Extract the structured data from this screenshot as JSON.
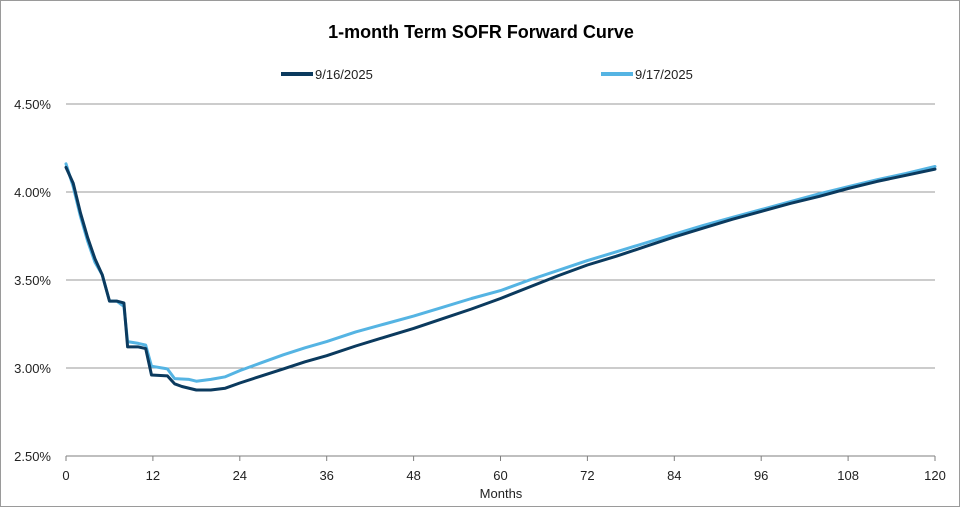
{
  "chart_data": {
    "type": "line",
    "title": "1-month Term SOFR Forward Curve",
    "xlabel": "Months",
    "ylabel": "",
    "xlim": [
      0,
      120
    ],
    "ylim": [
      2.5,
      4.5
    ],
    "x_ticks": [
      0,
      12,
      24,
      36,
      48,
      60,
      72,
      84,
      96,
      108,
      120
    ],
    "x_tick_labels": [
      "0",
      "12",
      "24",
      "36",
      "48",
      "60",
      "72",
      "84",
      "96",
      "108",
      "120"
    ],
    "y_ticks": [
      2.5,
      3.0,
      3.5,
      4.0,
      4.5
    ],
    "y_tick_labels": [
      "2.50%",
      "3.00%",
      "3.50%",
      "4.00%",
      "4.50%"
    ],
    "grid": "horizontal",
    "legend_position": "top",
    "series": [
      {
        "name": "9/16/2025",
        "color": "#0b3a5e",
        "points": [
          [
            0,
            4.14
          ],
          [
            1,
            4.05
          ],
          [
            2,
            3.88
          ],
          [
            3,
            3.74
          ],
          [
            4,
            3.62
          ],
          [
            5,
            3.53
          ],
          [
            6,
            3.38
          ],
          [
            7,
            3.38
          ],
          [
            8,
            3.37
          ],
          [
            8.5,
            3.12
          ],
          [
            10,
            3.12
          ],
          [
            11,
            3.11
          ],
          [
            11.8,
            2.96
          ],
          [
            14,
            2.955
          ],
          [
            15,
            2.91
          ],
          [
            16,
            2.895
          ],
          [
            18,
            2.875
          ],
          [
            20,
            2.875
          ],
          [
            22,
            2.885
          ],
          [
            24,
            2.915
          ],
          [
            27,
            2.955
          ],
          [
            30,
            2.995
          ],
          [
            33,
            3.035
          ],
          [
            36,
            3.07
          ],
          [
            40,
            3.125
          ],
          [
            44,
            3.175
          ],
          [
            48,
            3.225
          ],
          [
            52,
            3.28
          ],
          [
            56,
            3.335
          ],
          [
            60,
            3.395
          ],
          [
            64,
            3.46
          ],
          [
            68,
            3.525
          ],
          [
            72,
            3.585
          ],
          [
            76,
            3.635
          ],
          [
            80,
            3.69
          ],
          [
            84,
            3.745
          ],
          [
            88,
            3.795
          ],
          [
            92,
            3.845
          ],
          [
            96,
            3.89
          ],
          [
            100,
            3.935
          ],
          [
            104,
            3.975
          ],
          [
            108,
            4.02
          ],
          [
            112,
            4.06
          ],
          [
            116,
            4.095
          ],
          [
            120,
            4.13
          ]
        ]
      },
      {
        "name": "9/17/2025",
        "color": "#55b4e3",
        "points": [
          [
            0,
            4.16
          ],
          [
            1,
            4.03
          ],
          [
            2,
            3.86
          ],
          [
            3,
            3.72
          ],
          [
            4,
            3.6
          ],
          [
            5,
            3.53
          ],
          [
            6,
            3.38
          ],
          [
            7,
            3.38
          ],
          [
            8,
            3.35
          ],
          [
            8.5,
            3.15
          ],
          [
            10,
            3.14
          ],
          [
            11,
            3.13
          ],
          [
            11.8,
            3.01
          ],
          [
            14,
            2.995
          ],
          [
            15,
            2.94
          ],
          [
            17,
            2.935
          ],
          [
            18,
            2.925
          ],
          [
            20,
            2.935
          ],
          [
            22,
            2.95
          ],
          [
            24,
            2.985
          ],
          [
            27,
            3.03
          ],
          [
            30,
            3.075
          ],
          [
            33,
            3.115
          ],
          [
            36,
            3.15
          ],
          [
            40,
            3.205
          ],
          [
            44,
            3.25
          ],
          [
            48,
            3.295
          ],
          [
            52,
            3.345
          ],
          [
            56,
            3.395
          ],
          [
            60,
            3.44
          ],
          [
            64,
            3.5
          ],
          [
            68,
            3.555
          ],
          [
            72,
            3.61
          ],
          [
            76,
            3.66
          ],
          [
            80,
            3.71
          ],
          [
            84,
            3.76
          ],
          [
            88,
            3.81
          ],
          [
            92,
            3.855
          ],
          [
            96,
            3.9
          ],
          [
            100,
            3.945
          ],
          [
            104,
            3.99
          ],
          [
            108,
            4.03
          ],
          [
            112,
            4.07
          ],
          [
            116,
            4.105
          ],
          [
            120,
            4.145
          ]
        ]
      }
    ]
  }
}
